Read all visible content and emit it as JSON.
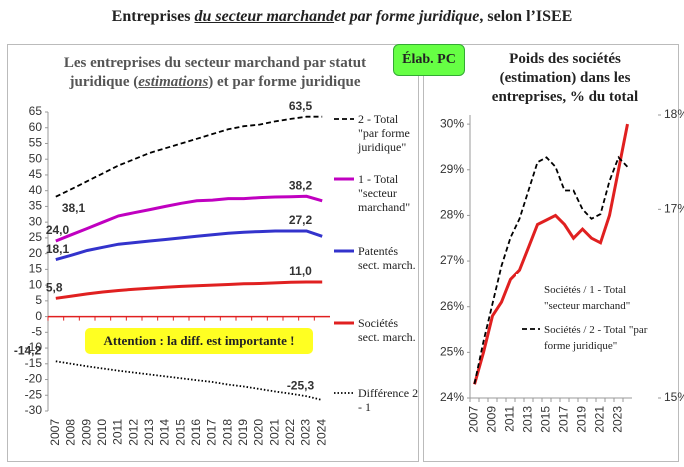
{
  "title_parts": [
    "Entreprises ",
    "du secteur marchand",
    "et par forme juridique",
    ", selon l’ISEE"
  ],
  "badge": "Élab. PC",
  "chart_data": [
    {
      "type": "line",
      "title_parts": [
        "Les entreprises du secteur marchand par statut juridique (",
        "estimations",
        ") et par forme juridique"
      ],
      "categories": [
        "2007",
        "2008",
        "2009",
        "2010",
        "2011",
        "2012",
        "2013",
        "2014",
        "2015",
        "2016",
        "2017",
        "2018",
        "2019",
        "2020",
        "2021",
        "2022",
        "2023",
        "2024"
      ],
      "ylim": [
        -30,
        65
      ],
      "yticks": [
        -30,
        -25,
        -20,
        -15,
        -10,
        -5,
        0,
        5,
        10,
        15,
        20,
        25,
        30,
        35,
        40,
        45,
        50,
        55,
        60,
        65
      ],
      "annotation": "Attention : la diff. est importante !",
      "series": [
        {
          "name": "2 - Total \"par forme juridique\"",
          "color": "#000000",
          "line_style": "dashed",
          "values": [
            38.1,
            40.5,
            43,
            45.5,
            48,
            50,
            52,
            53.5,
            55,
            56.5,
            58,
            59.5,
            60.5,
            61,
            62,
            62.8,
            63.5,
            63.5
          ],
          "value_labels": [
            "38,1",
            null,
            null,
            null,
            null,
            null,
            null,
            null,
            null,
            null,
            null,
            null,
            null,
            null,
            null,
            null,
            "63,5",
            null
          ]
        },
        {
          "name": "1 - Total \"secteur marchand\"",
          "color": "#c000c0",
          "line_style": "solid",
          "values": [
            24.0,
            26,
            28,
            30,
            32,
            33,
            34,
            35,
            36,
            36.8,
            37,
            37.5,
            37.5,
            37.8,
            38,
            38.1,
            38.2,
            36.8
          ],
          "value_labels": [
            "24,0",
            null,
            null,
            null,
            null,
            null,
            null,
            null,
            null,
            null,
            null,
            null,
            null,
            null,
            null,
            null,
            "38,2",
            null
          ]
        },
        {
          "name": "Patentés sect. march.",
          "color": "#3333cc",
          "line_style": "solid",
          "values": [
            18.1,
            19.5,
            21,
            22,
            23,
            23.5,
            24,
            24.5,
            25,
            25.5,
            26,
            26.5,
            26.8,
            27,
            27.2,
            27.2,
            27.2,
            25.5
          ],
          "value_labels": [
            "18,1",
            null,
            null,
            null,
            null,
            null,
            null,
            null,
            null,
            null,
            null,
            null,
            null,
            null,
            null,
            null,
            "27,2",
            null
          ]
        },
        {
          "name": "Sociétés sect. march.",
          "color": "#e02020",
          "line_style": "solid",
          "values": [
            5.8,
            6.5,
            7.2,
            7.8,
            8.3,
            8.7,
            9.0,
            9.3,
            9.6,
            9.8,
            10.0,
            10.2,
            10.4,
            10.5,
            10.7,
            10.9,
            11.0,
            11.0
          ],
          "value_labels": [
            "5,8",
            null,
            null,
            null,
            null,
            null,
            null,
            null,
            null,
            null,
            null,
            null,
            null,
            null,
            null,
            null,
            "11,0",
            null
          ]
        },
        {
          "name": "Différence 2 - 1",
          "color": "#000000",
          "line_style": "dotted",
          "values": [
            -14.2,
            -15,
            -15.8,
            -16.5,
            -17.2,
            -17.8,
            -18.4,
            -19,
            -19.6,
            -20.2,
            -20.8,
            -21.6,
            -22.2,
            -23,
            -23.8,
            -24.5,
            -25.3,
            -26.5
          ],
          "value_labels": [
            "-14,2",
            null,
            null,
            null,
            null,
            null,
            null,
            null,
            null,
            null,
            null,
            null,
            null,
            null,
            null,
            null,
            "-25,3",
            null
          ]
        }
      ]
    },
    {
      "type": "line",
      "title": "Poids des sociétés (estimation) dans les entreprises, % du total",
      "categories": [
        "2007",
        null,
        "2009",
        null,
        "2011",
        null,
        "2013",
        null,
        "2015",
        null,
        "2017",
        null,
        "2019",
        null,
        "2021",
        null,
        "2023",
        null
      ],
      "ylim": [
        24,
        30.2
      ],
      "yticks": [
        {
          "value": 24,
          "label": "24%"
        },
        {
          "value": 25,
          "label": "25%"
        },
        {
          "value": 26,
          "label": "26%"
        },
        {
          "value": 27,
          "label": "27%"
        },
        {
          "value": 28,
          "label": "28%"
        },
        {
          "value": 29,
          "label": "29%"
        },
        {
          "value": 30,
          "label": "30%"
        }
      ],
      "y2lim": [
        15,
        18
      ],
      "y2ticks": [
        {
          "value": 15,
          "label": "15%"
        },
        {
          "value": 17,
          "label": "17%"
        },
        {
          "value": 18,
          "label": "18%"
        }
      ],
      "series": [
        {
          "name": "Sociétés / 1 - Total \"secteur marchand\"",
          "color": "#e02020",
          "line_style": "solid",
          "values": [
            24.3,
            25.0,
            25.8,
            26.1,
            26.6,
            26.8,
            27.3,
            27.8,
            27.9,
            28.0,
            27.8,
            27.5,
            27.7,
            27.5,
            27.4,
            28.0,
            29.0,
            30.0
          ]
        },
        {
          "name": "Sociétés / 2 - Total \"par forme juridique\"",
          "color": "#000000",
          "line_style": "dashed",
          "axis": "y2",
          "values": [
            15.15,
            15.6,
            16.0,
            16.4,
            16.7,
            16.9,
            17.2,
            17.5,
            17.55,
            17.45,
            17.2,
            17.2,
            17.0,
            16.9,
            16.95,
            17.3,
            17.55,
            17.45
          ]
        }
      ]
    }
  ]
}
